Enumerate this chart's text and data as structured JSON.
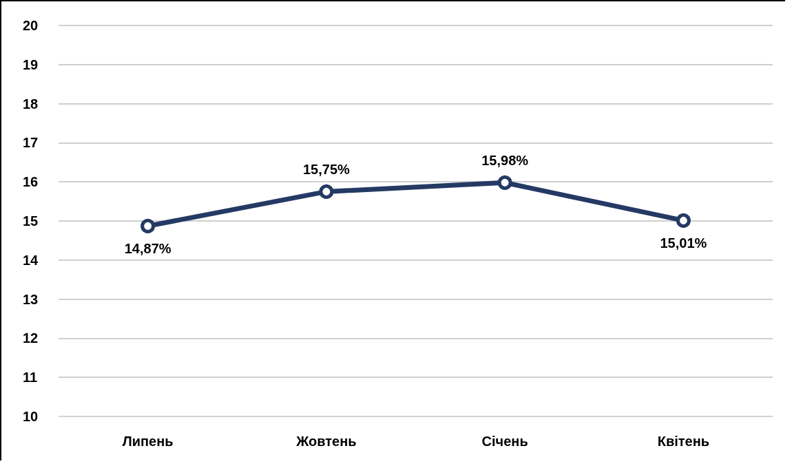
{
  "chart_data": {
    "type": "line",
    "categories": [
      "Липень",
      "Жовтень",
      "Січень",
      "Квітень"
    ],
    "series": [
      {
        "color": "#243a64",
        "values": [
          14.87,
          15.75,
          15.98,
          15.01
        ],
        "value_labels": [
          "14,87%",
          "15,75%",
          "15,98%",
          "15,01%"
        ]
      }
    ],
    "ylim": [
      10,
      20
    ],
    "yticks": [
      10,
      11,
      12,
      13,
      14,
      15,
      16,
      17,
      18,
      19,
      20
    ],
    "grid": "y",
    "marker": "circle",
    "line_style": "solid"
  }
}
